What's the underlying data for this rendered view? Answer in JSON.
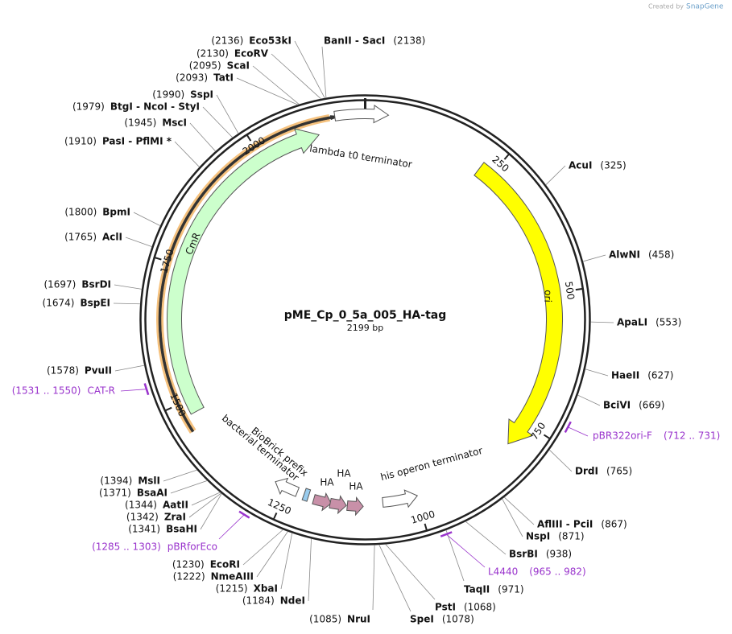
{
  "watermark": {
    "prefix": "Created by",
    "brand": "SnapGene"
  },
  "map": {
    "name": "pME_Cp_0_5a_005_HA-tag",
    "length": {
      "value": 2199,
      "label": "2199 bp"
    },
    "ticks": [
      250,
      500,
      750,
      1000,
      1250,
      1500,
      1750,
      2000
    ]
  },
  "features": [
    {
      "label": "lambda t0 terminator"
    },
    {
      "label": "CmR"
    },
    {
      "label": "ori"
    },
    {
      "label": "his operon terminator"
    },
    {
      "label": "bacterial terminator"
    },
    {
      "label": "BioBrick prefix"
    },
    {
      "label": "HA"
    },
    {
      "label": "HA"
    },
    {
      "label": "HA"
    }
  ],
  "primers": [
    {
      "name": "CAT-R",
      "range": "(1531 .. 1550)"
    },
    {
      "name": "pBR322ori-F",
      "range": "(712 .. 731)"
    },
    {
      "name": "pBRforEco",
      "range": "(1285 .. 1303)"
    },
    {
      "name": "L4440",
      "range": "(965 .. 982)"
    }
  ],
  "enzymes": [
    {
      "name": "Eco53kI",
      "position": {
        "value": 2136,
        "label": "(2136)"
      }
    },
    {
      "name": "EcoRV",
      "position": {
        "value": 2130,
        "label": "(2130)"
      }
    },
    {
      "name": "ScaI",
      "position": {
        "value": 2095,
        "label": "(2095)"
      }
    },
    {
      "name": "TatI",
      "position": {
        "value": 2093,
        "label": "(2093)"
      }
    },
    {
      "name": "SspI",
      "position": {
        "value": 1990,
        "label": "(1990)"
      }
    },
    {
      "name": "BtgI  -  NcoI  -  StyI",
      "position": {
        "value": 1979,
        "label": "(1979)"
      }
    },
    {
      "name": "MscI",
      "position": {
        "value": 1945,
        "label": "(1945)"
      }
    },
    {
      "name": "PasI  -  PflMI *",
      "position": {
        "value": 1910,
        "label": "(1910)"
      }
    },
    {
      "name": "BpmI",
      "position": {
        "value": 1800,
        "label": "(1800)"
      }
    },
    {
      "name": "AclI",
      "position": {
        "value": 1765,
        "label": "(1765)"
      }
    },
    {
      "name": "BsrDI",
      "position": {
        "value": 1697,
        "label": "(1697)"
      }
    },
    {
      "name": "BspEI",
      "position": {
        "value": 1674,
        "label": "(1674)"
      }
    },
    {
      "name": "PvuII",
      "position": {
        "value": 1578,
        "label": "(1578)"
      }
    },
    {
      "name": "MslI",
      "position": {
        "value": 1394,
        "label": "(1394)"
      }
    },
    {
      "name": "BsaAI",
      "position": {
        "value": 1371,
        "label": "(1371)"
      }
    },
    {
      "name": "AatII",
      "position": {
        "value": 1344,
        "label": "(1344)"
      }
    },
    {
      "name": "ZraI",
      "position": {
        "value": 1342,
        "label": "(1342)"
      }
    },
    {
      "name": "BsaHI",
      "position": {
        "value": 1341,
        "label": "(1341)"
      }
    },
    {
      "name": "EcoRI",
      "position": {
        "value": 1230,
        "label": "(1230)"
      }
    },
    {
      "name": "NmeAIII",
      "position": {
        "value": 1222,
        "label": "(1222)"
      }
    },
    {
      "name": "XbaI",
      "position": {
        "value": 1215,
        "label": "(1215)"
      }
    },
    {
      "name": "NdeI",
      "position": {
        "value": 1184,
        "label": "(1184)"
      }
    },
    {
      "name": "NruI",
      "position": {
        "value": 1085,
        "label": "(1085)"
      }
    },
    {
      "name": "BanII  -  SacI",
      "position": {
        "value": 2138,
        "label": "(2138)"
      }
    },
    {
      "name": "AcuI",
      "position": {
        "value": 325,
        "label": "(325)"
      }
    },
    {
      "name": "AlwNI",
      "position": {
        "value": 458,
        "label": "(458)"
      }
    },
    {
      "name": "ApaLI",
      "position": {
        "value": 553,
        "label": "(553)"
      }
    },
    {
      "name": "HaeII",
      "position": {
        "value": 627,
        "label": "(627)"
      }
    },
    {
      "name": "BciVI",
      "position": {
        "value": 669,
        "label": "(669)"
      }
    },
    {
      "name": "DrdI",
      "position": {
        "value": 765,
        "label": "(765)"
      }
    },
    {
      "name": "AflIII  -  PciI",
      "position": {
        "value": 867,
        "label": "(867)"
      }
    },
    {
      "name": "NspI",
      "position": {
        "value": 871,
        "label": "(871)"
      }
    },
    {
      "name": "BsrBI",
      "position": {
        "value": 938,
        "label": "(938)"
      }
    },
    {
      "name": "TaqII",
      "position": {
        "value": 971,
        "label": "(971)"
      }
    },
    {
      "name": "PstI",
      "position": {
        "value": 1068,
        "label": "(1068)"
      }
    },
    {
      "name": "SpeI",
      "position": {
        "value": 1078,
        "label": "(1078)"
      }
    }
  ]
}
